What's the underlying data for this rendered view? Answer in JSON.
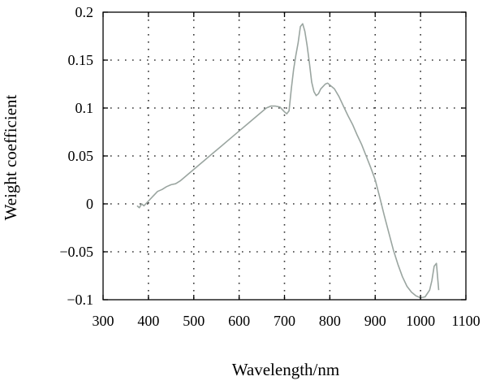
{
  "chart_data": {
    "type": "line",
    "title": "",
    "xlabel": "Wavelength/nm",
    "ylabel": "Weight coefficient",
    "xlim": [
      300,
      1100
    ],
    "ylim": [
      -0.1,
      0.2
    ],
    "x_ticks": [
      300,
      400,
      500,
      600,
      700,
      800,
      900,
      1000,
      1100
    ],
    "y_ticks": [
      -0.1,
      -0.05,
      0,
      0.05,
      0.1,
      0.15,
      0.2
    ],
    "x_tick_labels": [
      "300",
      "400",
      "500",
      "600",
      "700",
      "800",
      "900",
      "1000",
      "1100"
    ],
    "y_tick_labels": [
      "−0.1",
      "−0.05",
      "0",
      "0.05",
      "0.1",
      "0.15",
      "0.2"
    ],
    "grid": true,
    "legend": "none",
    "series": [
      {
        "color": "#9aa5a0",
        "x": [
          375,
          380,
          385,
          390,
          400,
          410,
          420,
          430,
          440,
          450,
          460,
          470,
          480,
          500,
          520,
          540,
          560,
          580,
          600,
          620,
          640,
          660,
          670,
          680,
          690,
          700,
          705,
          710,
          715,
          720,
          725,
          730,
          735,
          740,
          745,
          750,
          755,
          760,
          765,
          770,
          775,
          780,
          790,
          795,
          800,
          810,
          820,
          830,
          840,
          850,
          860,
          870,
          880,
          890,
          900,
          910,
          920,
          930,
          940,
          950,
          960,
          970,
          980,
          990,
          1000,
          1010,
          1020,
          1025,
          1030,
          1035,
          1040
        ],
        "y": [
          -0.002,
          -0.004,
          0,
          -0.002,
          0.003,
          0.008,
          0.013,
          0.015,
          0.018,
          0.02,
          0.021,
          0.024,
          0.028,
          0.036,
          0.044,
          0.052,
          0.06,
          0.068,
          0.076,
          0.084,
          0.092,
          0.1,
          0.102,
          0.102,
          0.101,
          0.096,
          0.094,
          0.097,
          0.12,
          0.14,
          0.155,
          0.168,
          0.185,
          0.188,
          0.18,
          0.165,
          0.147,
          0.127,
          0.117,
          0.113,
          0.115,
          0.12,
          0.125,
          0.126,
          0.124,
          0.12,
          0.112,
          0.102,
          0.092,
          0.083,
          0.072,
          0.062,
          0.05,
          0.038,
          0.025,
          0.007,
          -0.012,
          -0.03,
          -0.048,
          -0.063,
          -0.076,
          -0.086,
          -0.092,
          -0.096,
          -0.098,
          -0.097,
          -0.09,
          -0.08,
          -0.065,
          -0.062,
          -0.09
        ]
      }
    ]
  }
}
